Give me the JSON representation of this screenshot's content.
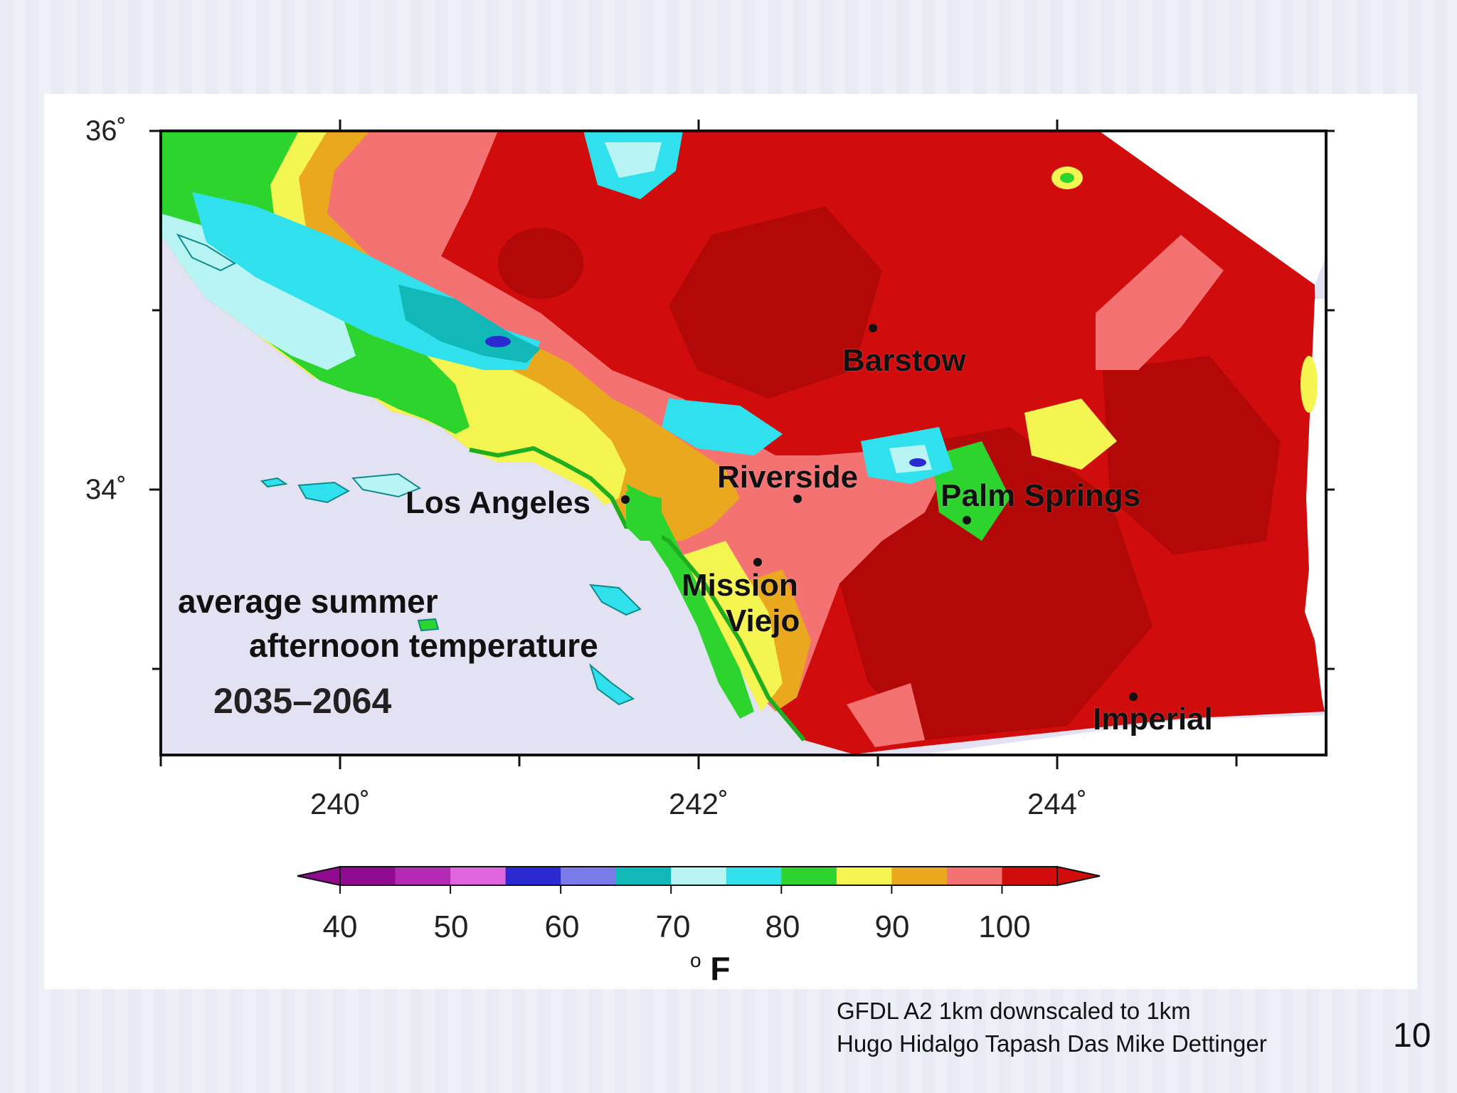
{
  "map": {
    "lat_ticks": [
      "36˚",
      "34˚"
    ],
    "lon_ticks": [
      "240˚",
      "242˚",
      "244˚"
    ],
    "cities": [
      {
        "name": "Barstow"
      },
      {
        "name": "Riverside"
      },
      {
        "name": "Palm Springs"
      },
      {
        "name": "Los Angeles"
      },
      {
        "name": "Mission"
      },
      {
        "name": "Viejo"
      },
      {
        "name": "Imperial"
      }
    ],
    "caption_line1": "average summer",
    "caption_line2": "afternoon temperature",
    "period": "2035–2064"
  },
  "colorbar": {
    "tick_labels": [
      "40",
      "50",
      "60",
      "70",
      "80",
      "90",
      "100"
    ],
    "unit": "F",
    "unit_degree": "o",
    "colors": [
      "#8e0a8e",
      "#b52ab5",
      "#e066e0",
      "#2a2ad0",
      "#7a7ae8",
      "#12b8b8",
      "#b8f4f4",
      "#30e0ec",
      "#2ed42e",
      "#f5f552",
      "#eaa81e",
      "#f57272",
      "#d00c0c"
    ]
  },
  "credits": {
    "line1": "GFDL A2 1km downscaled to 1km",
    "line2": "Hugo Hidalgo Tapash Das Mike Dettinger"
  },
  "page_number": "10",
  "colors": {
    "ocean": "#e3e2f2",
    "hot": "#d00c0c",
    "very_hot": "#b30808",
    "warm_pink": "#f57272",
    "orange": "#eaa81e",
    "yellow": "#f5f552",
    "green": "#2ed42e",
    "cyan": "#30e0ec",
    "light_cyan": "#b8f4f4",
    "teal": "#12b8b8"
  }
}
